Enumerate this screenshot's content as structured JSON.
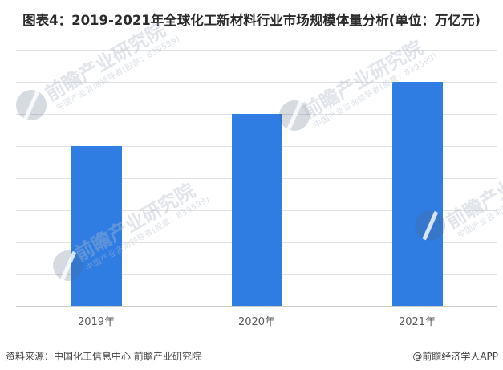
{
  "title": "图表4：2019-2021年全球化工新材料行业市场规模体量分析(单位：万亿元)",
  "chart_data": {
    "type": "bar",
    "title": "图表4：2019-2021年全球化工新材料行业市场规模体量分析(单位：万亿元)",
    "categories": [
      "2019年",
      "2020年",
      "2021年"
    ],
    "values": [
      5,
      6,
      7
    ],
    "xlabel": "",
    "ylabel": "",
    "unit": "万亿元",
    "ylim": [
      0,
      8
    ],
    "grid": true,
    "y_tick_labels_visible": false,
    "legend": false,
    "bar_color": "#2f7de3"
  },
  "footer": {
    "source": "资料来源：中国化工信息中心 前瞻产业研究院",
    "credit": "@前瞻经济学人APP"
  },
  "watermark": {
    "big_text": "前瞻产业研究院",
    "small_text": "中国产业咨询领导者(股票：839599)"
  }
}
